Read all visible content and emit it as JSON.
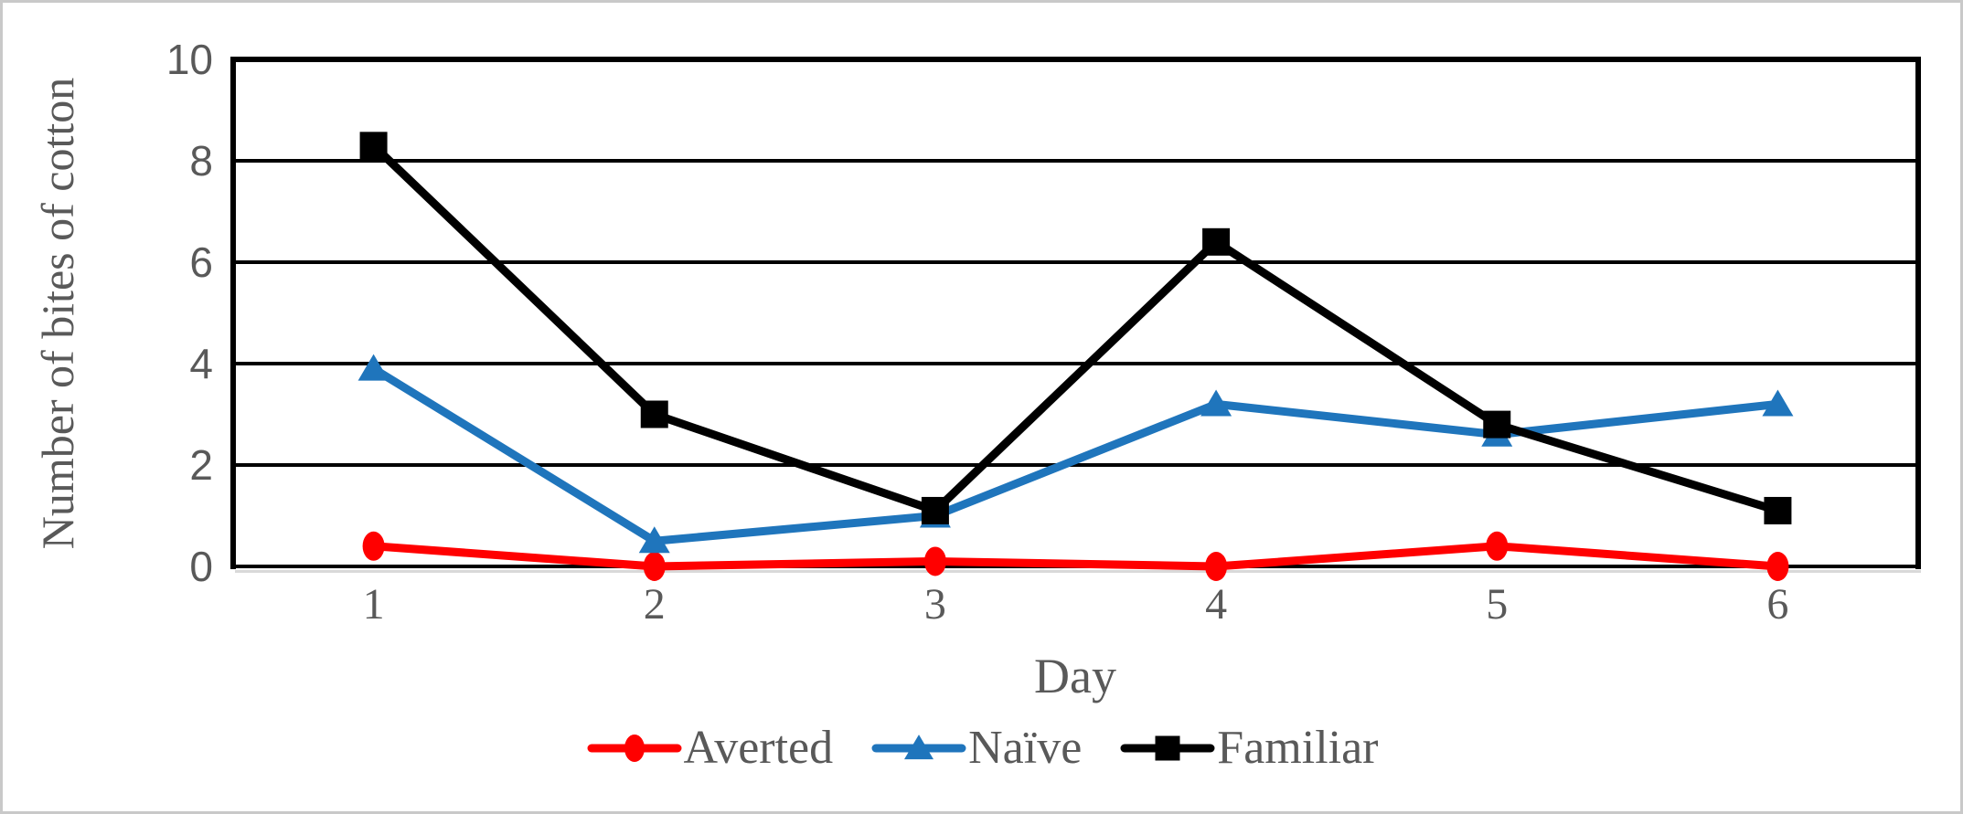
{
  "figure": {
    "frame_border_color": "#c9c9c9",
    "background_color": "#ffffff",
    "text_color": "#595959",
    "gridline_color": "#000000",
    "axis_shadow_color": "#d9d9d9"
  },
  "chart_data": {
    "type": "line",
    "title": "",
    "xlabel": "Day",
    "ylabel": "Number of bites of cotton",
    "x": [
      1,
      2,
      3,
      4,
      5,
      6
    ],
    "x_tick_labels": [
      "1",
      "2",
      "3",
      "4",
      "5",
      "6"
    ],
    "y_ticks": [
      0,
      2,
      4,
      6,
      8,
      10
    ],
    "ylim": [
      0,
      10
    ],
    "grid": "horizontal-major",
    "legend_position": "bottom-center",
    "series": [
      {
        "name": "Averted",
        "color": "#ff0000",
        "marker": "circle",
        "values": [
          0.4,
          0.0,
          0.1,
          0.0,
          0.4,
          0.0
        ]
      },
      {
        "name": "Naïve",
        "color": "#1f75bc",
        "marker": "triangle",
        "values": [
          3.9,
          0.5,
          1.0,
          3.2,
          2.6,
          3.2
        ]
      },
      {
        "name": "Familiar",
        "color": "#000000",
        "marker": "square",
        "values": [
          8.3,
          3.0,
          1.1,
          6.4,
          2.8,
          1.1
        ]
      }
    ]
  }
}
